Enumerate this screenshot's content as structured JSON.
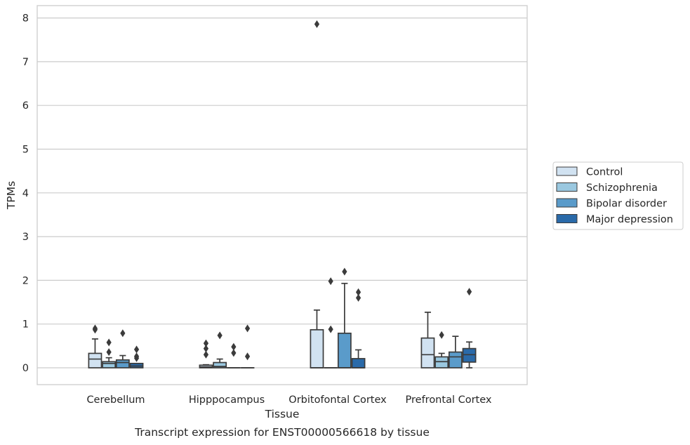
{
  "chart_data": {
    "type": "box",
    "title": "",
    "caption": "Transcript expression for ENST00000566618 by tissue",
    "xlabel": "Tissue",
    "ylabel": "TPMs",
    "ylim": [
      -0.38,
      8.25
    ],
    "yticks": [
      "0",
      "1",
      "2",
      "3",
      "4",
      "5",
      "6",
      "7",
      "8"
    ],
    "grid": true,
    "legend_position": "right",
    "categories": [
      "Cerebellum",
      "Hipppocampus",
      "Orbitofontal Cortex",
      "Prefrontal Cortex"
    ],
    "series": [
      {
        "name": "Control",
        "color": "#d1e2f1",
        "boxes": [
          {
            "q1": 0.0,
            "median": 0.2,
            "q3": 0.33,
            "whisker_low": 0.0,
            "whisker_high": 0.66,
            "outliers": [
              0.87,
              0.9
            ]
          },
          {
            "q1": 0.0,
            "median": 0.02,
            "q3": 0.06,
            "whisker_low": 0.0,
            "whisker_high": 0.07,
            "outliers": [
              0.3,
              0.44,
              0.56
            ]
          },
          {
            "q1": 0.0,
            "median": 0.0,
            "q3": 0.87,
            "whisker_low": 0.0,
            "whisker_high": 1.32,
            "outliers": [
              7.86
            ]
          },
          {
            "q1": 0.0,
            "median": 0.3,
            "q3": 0.68,
            "whisker_low": 0.0,
            "whisker_high": 1.27,
            "outliers": []
          }
        ]
      },
      {
        "name": "Schizophrenia",
        "color": "#9ac8e0",
        "boxes": [
          {
            "q1": 0.0,
            "median": 0.1,
            "q3": 0.14,
            "whisker_low": 0.0,
            "whisker_high": 0.23,
            "outliers": [
              0.36,
              0.58
            ]
          },
          {
            "q1": 0.0,
            "median": 0.03,
            "q3": 0.12,
            "whisker_low": 0.0,
            "whisker_high": 0.2,
            "outliers": [
              0.74
            ]
          },
          {
            "q1": 0.0,
            "median": 0.0,
            "q3": 0.0,
            "whisker_low": 0.0,
            "whisker_high": 0.0,
            "outliers": [
              0.88,
              1.98
            ]
          },
          {
            "q1": 0.0,
            "median": 0.14,
            "q3": 0.25,
            "whisker_low": 0.0,
            "whisker_high": 0.33,
            "outliers": [
              0.75
            ]
          }
        ]
      },
      {
        "name": "Bipolar disorder",
        "color": "#5a9bca",
        "boxes": [
          {
            "q1": 0.0,
            "median": 0.12,
            "q3": 0.18,
            "whisker_low": 0.0,
            "whisker_high": 0.28,
            "outliers": [
              0.79
            ]
          },
          {
            "q1": 0.0,
            "median": 0.0,
            "q3": 0.0,
            "whisker_low": 0.0,
            "whisker_high": 0.0,
            "outliers": [
              0.34,
              0.48
            ]
          },
          {
            "q1": 0.0,
            "median": 0.0,
            "q3": 0.79,
            "whisker_low": 0.0,
            "whisker_high": 1.93,
            "outliers": [
              2.2
            ]
          },
          {
            "q1": 0.0,
            "median": 0.25,
            "q3": 0.36,
            "whisker_low": 0.0,
            "whisker_high": 0.72,
            "outliers": []
          }
        ]
      },
      {
        "name": "Major depression",
        "color": "#2a6aa9",
        "boxes": [
          {
            "q1": 0.0,
            "median": 0.04,
            "q3": 0.1,
            "whisker_low": 0.0,
            "whisker_high": 0.1,
            "outliers": [
              0.22,
              0.26,
              0.42
            ]
          },
          {
            "q1": 0.0,
            "median": 0.0,
            "q3": 0.0,
            "whisker_low": 0.0,
            "whisker_high": 0.0,
            "outliers": [
              0.26,
              0.9
            ]
          },
          {
            "q1": 0.0,
            "median": 0.0,
            "q3": 0.21,
            "whisker_low": 0.0,
            "whisker_high": 0.41,
            "outliers": [
              1.6,
              1.73
            ]
          },
          {
            "q1": 0.13,
            "median": 0.3,
            "q3": 0.44,
            "whisker_low": 0.0,
            "whisker_high": 0.59,
            "outliers": [
              1.74
            ]
          }
        ]
      }
    ]
  }
}
